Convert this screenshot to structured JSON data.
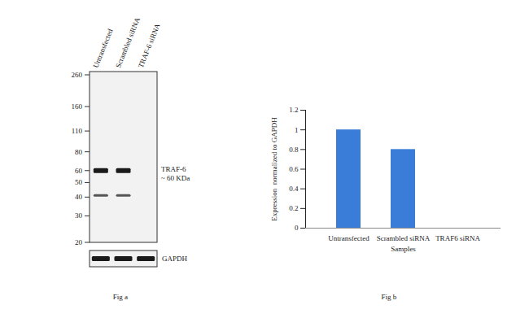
{
  "blot": {
    "lanes": [
      "Untransfected",
      "Scrambled siRNA",
      "TRAF-6 siRNA"
    ],
    "markers_kda": [
      260,
      160,
      110,
      80,
      60,
      50,
      40,
      30,
      20
    ],
    "target_label": [
      "TRAF-6",
      "~ 60 KDa"
    ],
    "bands": [
      {
        "kda": 60,
        "lanes": [
          0,
          1
        ]
      },
      {
        "kda": 41,
        "lanes": [
          0,
          1
        ]
      }
    ],
    "loading_control": {
      "label": "GAPDH",
      "lanes": [
        0,
        1,
        2
      ]
    },
    "caption": "Fig a"
  },
  "chart_data": {
    "type": "bar",
    "categories": [
      "Untransfected",
      "Scrambled siRNA",
      "TRAF6 siRNA"
    ],
    "values": [
      1.0,
      0.8,
      0
    ],
    "color": "#3a7dd8",
    "ylim": [
      0,
      1.2
    ],
    "yticks": [
      0,
      0.2,
      0.4,
      0.6,
      0.8,
      1,
      1.2
    ],
    "y_label": "Expression  normalized to GAPDH",
    "x_label": "Samples",
    "grid": false,
    "caption": "Fig b"
  }
}
